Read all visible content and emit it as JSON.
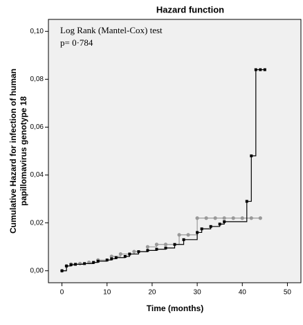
{
  "chart_data": {
    "type": "step",
    "title": "Hazard function",
    "xlabel": "Time (months)",
    "ylabel": [
      "Cumulative Hazard for infection of human",
      "papillomavirus genotype 18"
    ],
    "annotations": [
      "Log Rank (Mantel-Cox) test",
      "p= 0·784"
    ],
    "xlim": [
      -3,
      53
    ],
    "xticks": [
      0,
      10,
      20,
      30,
      40,
      50
    ],
    "ylim": [
      -0.005,
      0.105
    ],
    "yticks": [
      {
        "value": 0,
        "label": "0,00"
      },
      {
        "value": 0.02,
        "label": "0,02"
      },
      {
        "value": 0.04,
        "label": "0,04"
      },
      {
        "value": 0.06,
        "label": "0,06"
      },
      {
        "value": 0.08,
        "label": "0,08"
      },
      {
        "value": 0.1,
        "label": "0,10"
      }
    ],
    "series": [
      {
        "color": "#999999",
        "marker": "circle",
        "x": [
          0,
          1,
          2,
          4,
          6,
          8,
          11,
          13,
          16,
          19,
          21,
          23,
          26,
          28,
          30,
          32,
          34,
          36,
          38,
          40,
          42,
          44
        ],
        "values": [
          0,
          0.002,
          0.0028,
          0.003,
          0.0035,
          0.0045,
          0.006,
          0.007,
          0.008,
          0.01,
          0.011,
          0.011,
          0.015,
          0.015,
          0.022,
          0.022,
          0.022,
          0.022,
          0.022,
          0.022,
          0.022,
          0.022
        ]
      },
      {
        "color": "#000000",
        "marker": "square",
        "x": [
          0,
          1,
          2,
          3,
          5,
          7,
          8,
          10,
          11,
          12,
          14,
          15,
          17,
          19,
          21,
          23,
          25,
          27,
          30,
          31,
          33,
          35,
          36,
          41,
          42,
          43,
          44,
          45
        ],
        "values": [
          0,
          0.002,
          0.0025,
          0.0027,
          0.003,
          0.0035,
          0.004,
          0.0045,
          0.005,
          0.0055,
          0.006,
          0.007,
          0.008,
          0.0085,
          0.009,
          0.0095,
          0.011,
          0.013,
          0.016,
          0.0175,
          0.0185,
          0.0195,
          0.0205,
          0.029,
          0.048,
          0.084,
          0.084,
          0.084
        ]
      }
    ]
  }
}
